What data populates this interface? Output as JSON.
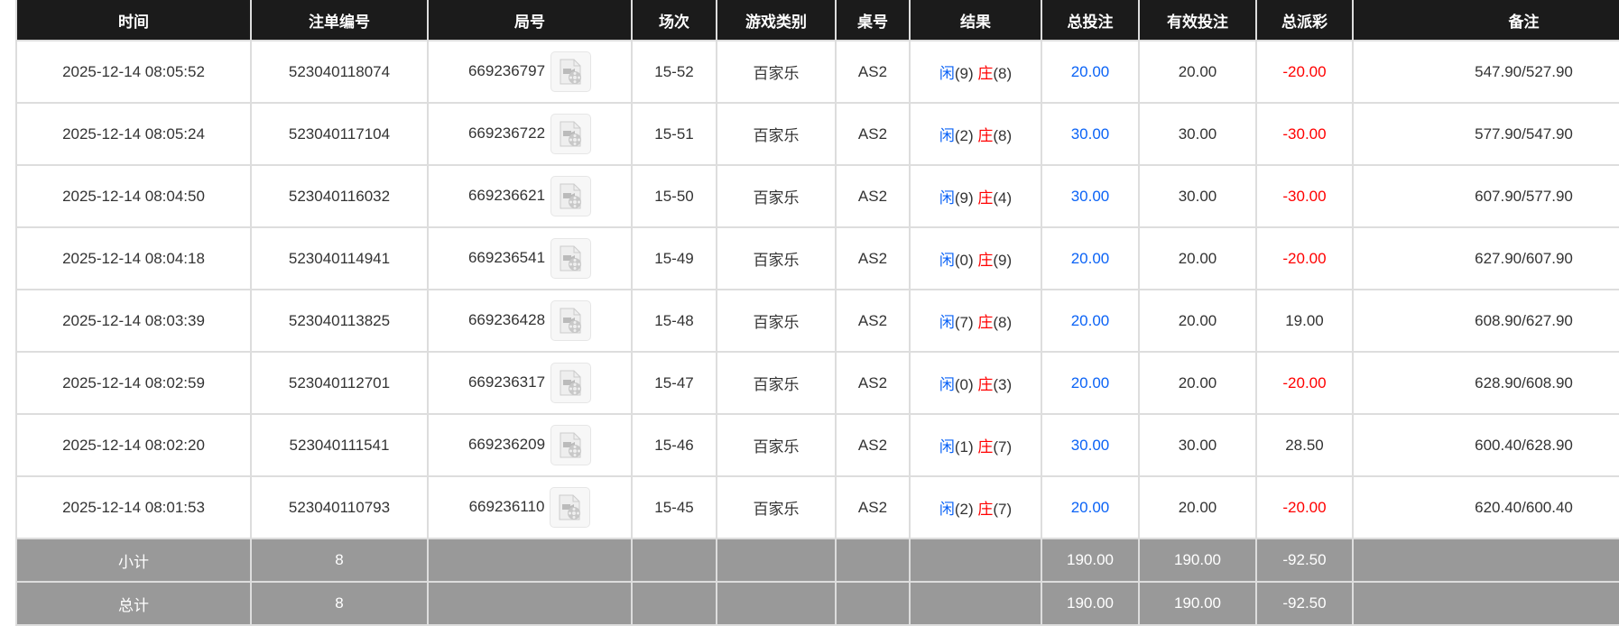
{
  "headers": [
    "时间",
    "注单编号",
    "局号",
    "场次",
    "游戏类别",
    "桌号",
    "结果",
    "总投注",
    "有效投注",
    "总派彩",
    "备注"
  ],
  "rows": [
    {
      "time": "2025-12-14 08:05:52",
      "bet_id": "523040118074",
      "round": "669236797",
      "shoe": "15-52",
      "game": "百家乐",
      "table": "AS2",
      "player_label": "闲",
      "player": "(9)",
      "banker_label": "庄",
      "banker": "(8)",
      "total_bet": "20.00",
      "valid_bet": "20.00",
      "payout": "-20.00",
      "note": "547.90/527.90"
    },
    {
      "time": "2025-12-14 08:05:24",
      "bet_id": "523040117104",
      "round": "669236722",
      "shoe": "15-51",
      "game": "百家乐",
      "table": "AS2",
      "player_label": "闲",
      "player": "(2)",
      "banker_label": "庄",
      "banker": "(8)",
      "total_bet": "30.00",
      "valid_bet": "30.00",
      "payout": "-30.00",
      "note": "577.90/547.90"
    },
    {
      "time": "2025-12-14 08:04:50",
      "bet_id": "523040116032",
      "round": "669236621",
      "shoe": "15-50",
      "game": "百家乐",
      "table": "AS2",
      "player_label": "闲",
      "player": "(9)",
      "banker_label": "庄",
      "banker": "(4)",
      "total_bet": "30.00",
      "valid_bet": "30.00",
      "payout": "-30.00",
      "note": "607.90/577.90"
    },
    {
      "time": "2025-12-14 08:04:18",
      "bet_id": "523040114941",
      "round": "669236541",
      "shoe": "15-49",
      "game": "百家乐",
      "table": "AS2",
      "player_label": "闲",
      "player": "(0)",
      "banker_label": "庄",
      "banker": "(9)",
      "total_bet": "20.00",
      "valid_bet": "20.00",
      "payout": "-20.00",
      "note": "627.90/607.90"
    },
    {
      "time": "2025-12-14 08:03:39",
      "bet_id": "523040113825",
      "round": "669236428",
      "shoe": "15-48",
      "game": "百家乐",
      "table": "AS2",
      "player_label": "闲",
      "player": "(7)",
      "banker_label": "庄",
      "banker": "(8)",
      "total_bet": "20.00",
      "valid_bet": "20.00",
      "payout": "19.00",
      "note": "608.90/627.90"
    },
    {
      "time": "2025-12-14 08:02:59",
      "bet_id": "523040112701",
      "round": "669236317",
      "shoe": "15-47",
      "game": "百家乐",
      "table": "AS2",
      "player_label": "闲",
      "player": "(0)",
      "banker_label": "庄",
      "banker": "(3)",
      "total_bet": "20.00",
      "valid_bet": "20.00",
      "payout": "-20.00",
      "note": "628.90/608.90"
    },
    {
      "time": "2025-12-14 08:02:20",
      "bet_id": "523040111541",
      "round": "669236209",
      "shoe": "15-46",
      "game": "百家乐",
      "table": "AS2",
      "player_label": "闲",
      "player": "(1)",
      "banker_label": "庄",
      "banker": "(7)",
      "total_bet": "30.00",
      "valid_bet": "30.00",
      "payout": "28.50",
      "note": "600.40/628.90"
    },
    {
      "time": "2025-12-14 08:01:53",
      "bet_id": "523040110793",
      "round": "669236110",
      "shoe": "15-45",
      "game": "百家乐",
      "table": "AS2",
      "player_label": "闲",
      "player": "(2)",
      "banker_label": "庄",
      "banker": "(7)",
      "total_bet": "20.00",
      "valid_bet": "20.00",
      "payout": "-20.00",
      "note": "620.40/600.40"
    }
  ],
  "subtotal": {
    "label": "小计",
    "count": "8",
    "total_bet": "190.00",
    "valid_bet": "190.00",
    "payout": "-92.50"
  },
  "grand_total": {
    "label": "总计",
    "count": "8",
    "total_bet": "190.00",
    "valid_bet": "190.00",
    "payout": "-92.50"
  },
  "icons": {
    "replay": "video-file-icon"
  },
  "colors": {
    "header_bg": "#1b1b1b",
    "total_bet": "#0b63f6",
    "negative": "#ff0000",
    "summary_bg": "#999999"
  }
}
